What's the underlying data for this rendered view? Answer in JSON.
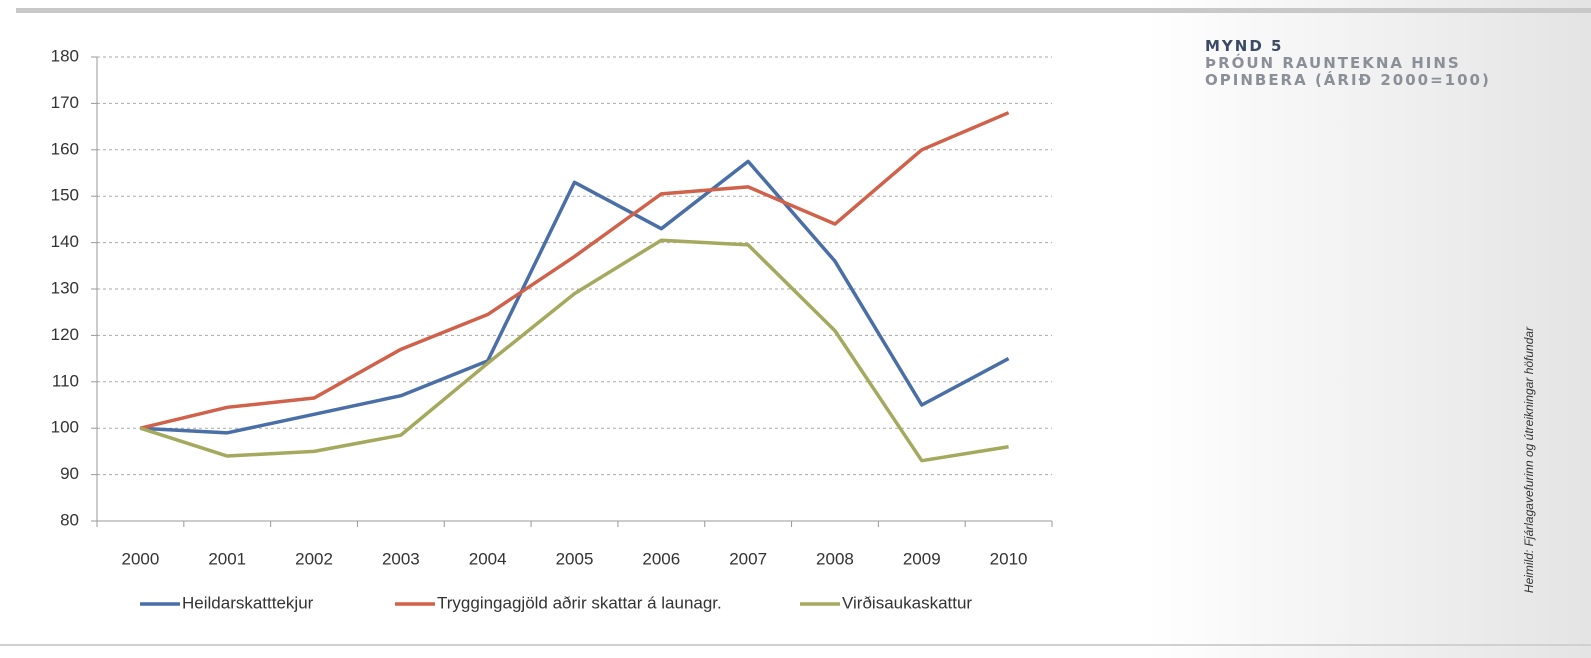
{
  "chart_data": {
    "type": "line",
    "title": "MYND 5",
    "subtitle": "ÞRÓUN RAUNTEKNA HINS OPINBERA (ÁRIÐ 2000=100)",
    "source": "Heimild: Fjárlagavefurinn og útreikningar höfundar",
    "categories": [
      "2000",
      "2001",
      "2002",
      "2003",
      "2004",
      "2005",
      "2006",
      "2007",
      "2008",
      "2009",
      "2010"
    ],
    "series": [
      {
        "name": "Heildarskatttekjur",
        "color": "#4a6ea6",
        "values": [
          100,
          99,
          103,
          107,
          114.5,
          153,
          143,
          157.5,
          136,
          105,
          115
        ]
      },
      {
        "name": "Tryggingagjöld aðrir skattar á launagr.",
        "color": "#d0614a",
        "values": [
          100,
          104.5,
          106.5,
          117,
          124.5,
          137,
          150.5,
          152,
          144,
          160,
          168
        ]
      },
      {
        "name": "Virðisaukaskattur",
        "color": "#a5a95e",
        "values": [
          100,
          94,
          95,
          98.5,
          114,
          129,
          140.5,
          139.5,
          121,
          93,
          96
        ]
      }
    ],
    "ylim": [
      80,
      180
    ],
    "yticks": [
      80,
      90,
      100,
      110,
      120,
      130,
      140,
      150,
      160,
      170,
      180
    ],
    "grid": true,
    "legend": "bottom"
  }
}
